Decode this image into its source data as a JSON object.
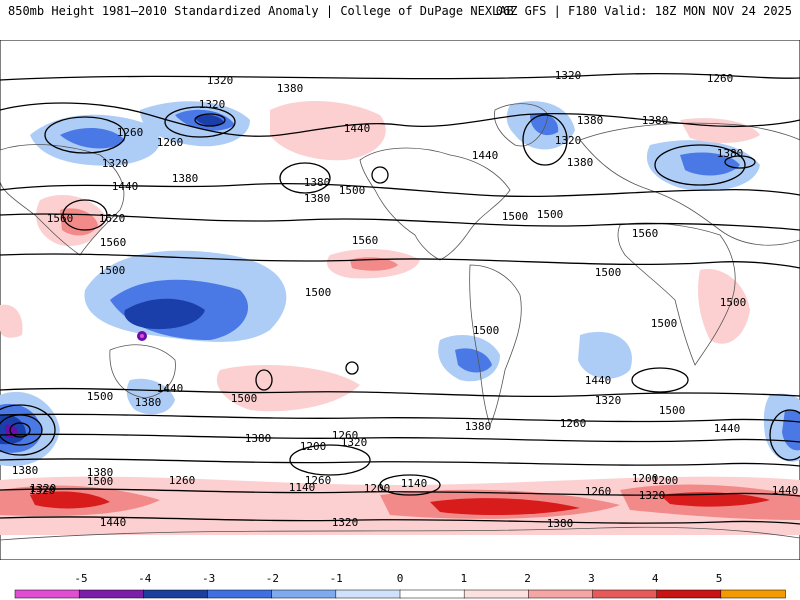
{
  "header": {
    "title": "850mb Height 1981–2010 Standardized Anomaly | College of DuPage NEXLAB",
    "run_info": "06Z GFS | F180 Valid: 18Z MON NOV 24 2025"
  },
  "map": {
    "contour_labels": [
      "1320",
      "1380",
      "1320",
      "1260",
      "1260",
      "1320",
      "1440",
      "1380",
      "1380",
      "1500",
      "1380",
      "1560",
      "1620",
      "1560",
      "1500",
      "1500",
      "1440",
      "1500",
      "1380",
      "1380",
      "1500",
      "1560",
      "1440",
      "1380",
      "1500",
      "1320",
      "1320",
      "1380",
      "1260",
      "1380",
      "1440",
      "1500",
      "1560",
      "1500",
      "1500",
      "1500",
      "1500",
      "1440",
      "1320",
      "1500",
      "1440",
      "1380",
      "1320",
      "1260",
      "1200",
      "1260",
      "1380",
      "1260",
      "1200",
      "1140",
      "1140",
      "1200",
      "1380",
      "1320",
      "1260",
      "1320",
      "1500",
      "1440",
      "1260",
      "1200",
      "1320",
      "1440",
      "1320",
      "1380",
      "1380"
    ],
    "colors": {
      "neg": [
        "#6a0dad",
        "#1a3faa",
        "#4a79e6",
        "#aecdf6"
      ],
      "pos": [
        "#fcd0d0",
        "#f28a8a",
        "#d81b1b",
        "#ff9900"
      ]
    }
  },
  "colorbar": {
    "ticks": [
      "-5",
      "-4",
      "-3",
      "-2",
      "-1",
      "0",
      "1",
      "2",
      "3",
      "4",
      "5"
    ],
    "colors": [
      "#e04fd3",
      "#7c1fa8",
      "#1c3f9e",
      "#3f6fe0",
      "#7faaf0",
      "#cfe1fb",
      "#ffffff",
      "#fde0e0",
      "#f6a5a5",
      "#e85a5a",
      "#c81414",
      "#f29a00"
    ]
  }
}
